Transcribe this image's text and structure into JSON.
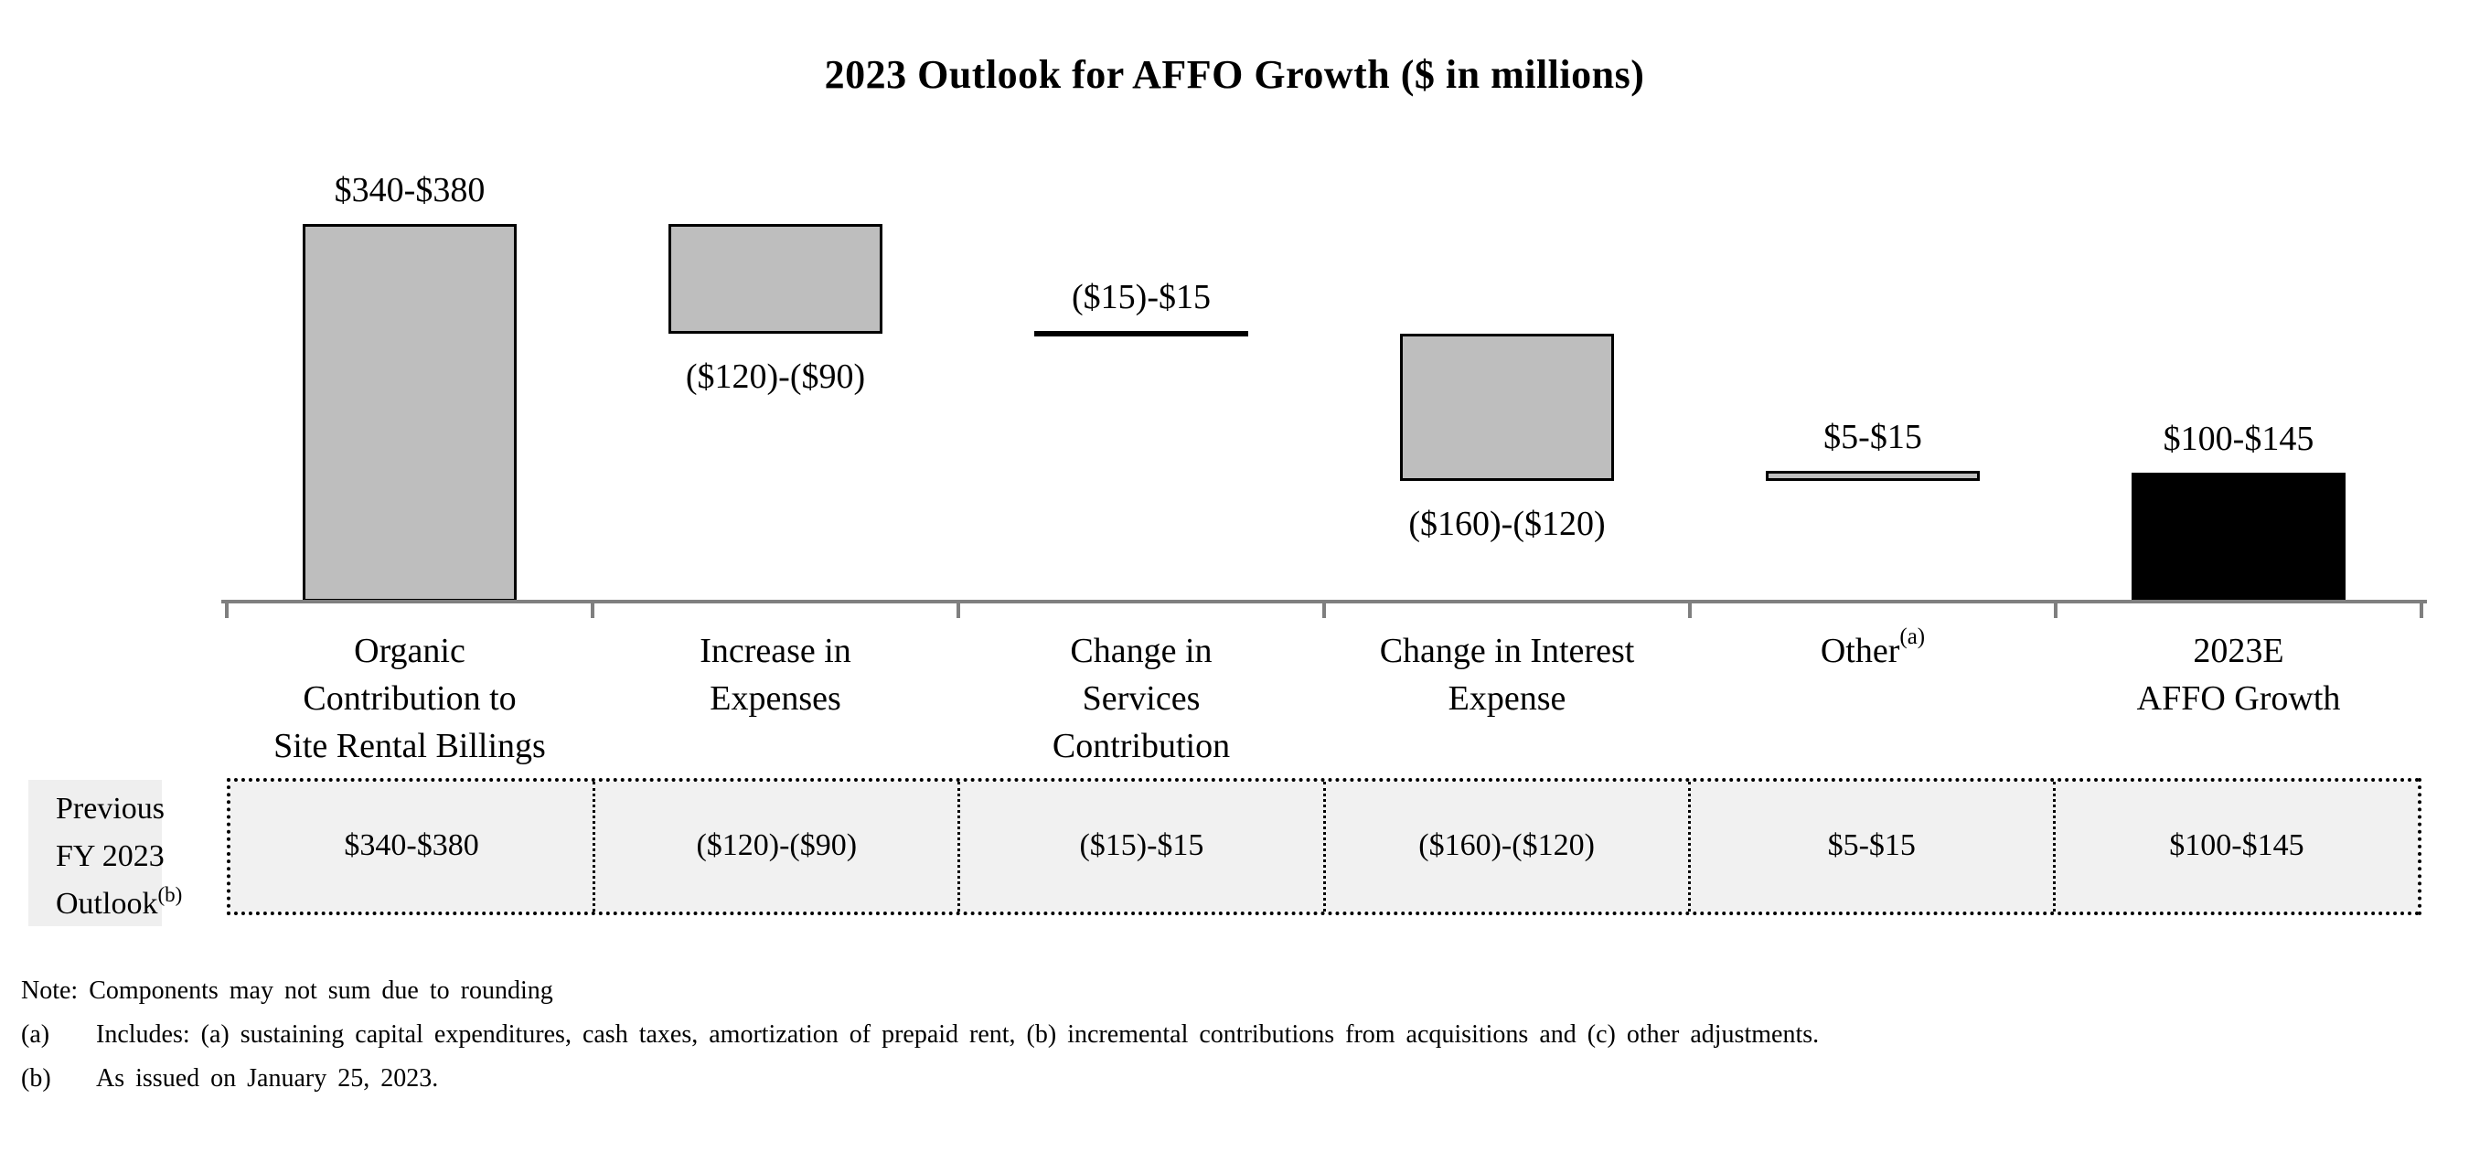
{
  "title": "2023 Outlook for AFFO Growth ($ in millions)",
  "chart_data": {
    "type": "bar",
    "subtype": "waterfall",
    "title": "2023 Outlook for AFFO Growth ($ in millions)",
    "units": "$ in millions",
    "ylim": [
      0,
      380
    ],
    "grid": false,
    "legend": "none",
    "categories": [
      "Organic Contribution to Site Rental Billings",
      "Increase in Expenses",
      "Change in Services Contribution",
      "Change in Interest Expense",
      "Other (a)",
      "2023E AFFO Growth"
    ],
    "columns": [
      {
        "id": "organic-contribution",
        "label_lines": [
          "Organic",
          "Contribution to",
          "Site Rental Billings"
        ],
        "superscript": "",
        "value_label": "$340-$380",
        "range_low": 340,
        "range_high": 380,
        "start": 0,
        "end": 360,
        "bar_style": "gray",
        "value_label_position": "above"
      },
      {
        "id": "increase-in-expenses",
        "label_lines": [
          "Increase in",
          "Expenses"
        ],
        "superscript": "",
        "value_label": "($120)-($90)",
        "range_low": -120,
        "range_high": -90,
        "start": 360,
        "end": 255,
        "bar_style": "gray",
        "value_label_position": "below"
      },
      {
        "id": "change-in-services",
        "label_lines": [
          "Change in",
          "Services",
          "Contribution"
        ],
        "superscript": "",
        "value_label": "($15)-$15",
        "range_low": -15,
        "range_high": 15,
        "start": 255,
        "end": 255,
        "bar_style": "line",
        "value_label_position": "above"
      },
      {
        "id": "change-in-interest-expense",
        "label_lines": [
          "Change in Interest",
          "Expense"
        ],
        "superscript": "",
        "value_label": "($160)-($120)",
        "range_low": -160,
        "range_high": -120,
        "start": 255,
        "end": 115,
        "bar_style": "gray",
        "value_label_position": "below"
      },
      {
        "id": "other",
        "label_lines": [
          "Other"
        ],
        "superscript": "(a)",
        "value_label": "$5-$15",
        "range_low": 5,
        "range_high": 15,
        "start": 115,
        "end": 125,
        "bar_style": "gray",
        "value_label_position": "above"
      },
      {
        "id": "affo-growth-2023e",
        "label_lines": [
          "2023E",
          "AFFO Growth"
        ],
        "superscript": "",
        "value_label": "$100-$145",
        "range_low": 100,
        "range_high": 145,
        "start": 0,
        "end": 122.5,
        "bar_style": "black",
        "value_label_position": "above"
      }
    ]
  },
  "table": {
    "header_lines": [
      "Previous",
      "FY 2023",
      "Outlook"
    ],
    "header_superscript": "(b)",
    "values": [
      "$340-$380",
      "($120)-($90)",
      "($15)-$15",
      "($160)-($120)",
      "$5-$15",
      "$100-$145"
    ]
  },
  "footnotes": [
    {
      "marker": "",
      "text": "Note: Components may not sum due to rounding"
    },
    {
      "marker": "(a)",
      "text": "Includes: (a) sustaining capital expenditures, cash taxes, amortization of prepaid rent, (b) incremental contributions from acquisitions and (c) other adjustments."
    },
    {
      "marker": "(b)",
      "text": "As issued on January 25, 2023."
    }
  ],
  "colors": {
    "bar_gray": "#bebebe",
    "bar_black": "#000000",
    "bar_border": "#000000",
    "axis": "#7f7f7f",
    "table_cell_bg": "#f1f1f1",
    "table_header_bg": "#efefef",
    "table_border": "#000000"
  }
}
